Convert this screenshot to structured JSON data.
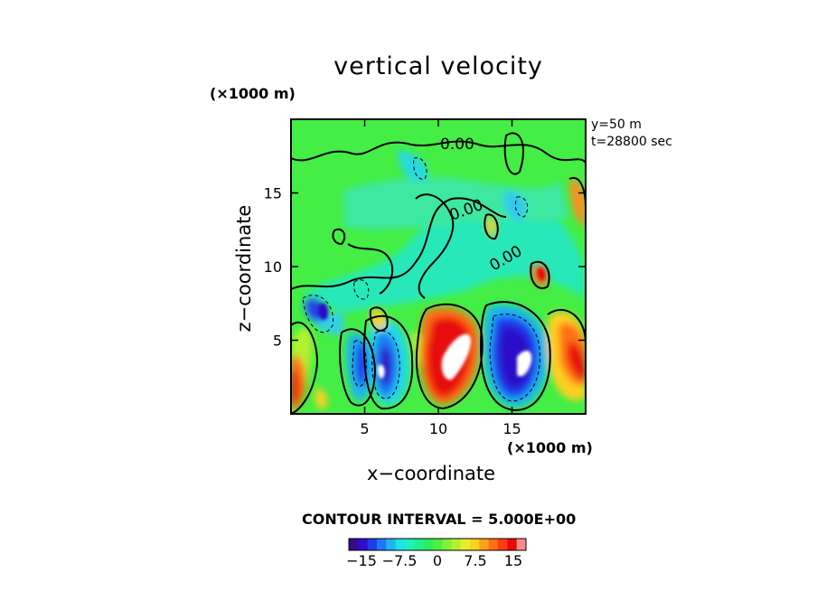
{
  "chart_data": {
    "type": "heatmap",
    "title": "vertical velocity",
    "xlabel": "x−coordinate",
    "ylabel": "z−coordinate",
    "x_unit": "(×1000 m)",
    "y_unit": "(×1000 m)",
    "xlim": [
      0,
      20
    ],
    "ylim": [
      0,
      20
    ],
    "x_ticks": [
      "5",
      "10",
      "15"
    ],
    "y_ticks": [
      "5",
      "10",
      "15"
    ],
    "info": [
      "y=50  m",
      "t=28800  sec"
    ],
    "contour_interval_text": "CONTOUR INTERVAL = 5.000E+00",
    "contour_labels": [
      "0.00",
      "0.00",
      "0.00"
    ],
    "colorbar": {
      "tick_labels": [
        "−15",
        "−7.5",
        "0",
        "7.5",
        "15"
      ],
      "colors": [
        "#3a0a8c",
        "#2a10c8",
        "#1e3cf0",
        "#1e78f5",
        "#1eb4f0",
        "#20e0e8",
        "#20f0c0",
        "#20f090",
        "#28f060",
        "#4cf040",
        "#80f038",
        "#b4f030",
        "#e6f028",
        "#ffd020",
        "#ffa018",
        "#ff7014",
        "#ff3c10",
        "#e80a0a",
        "#ff8c8c"
      ]
    }
  }
}
